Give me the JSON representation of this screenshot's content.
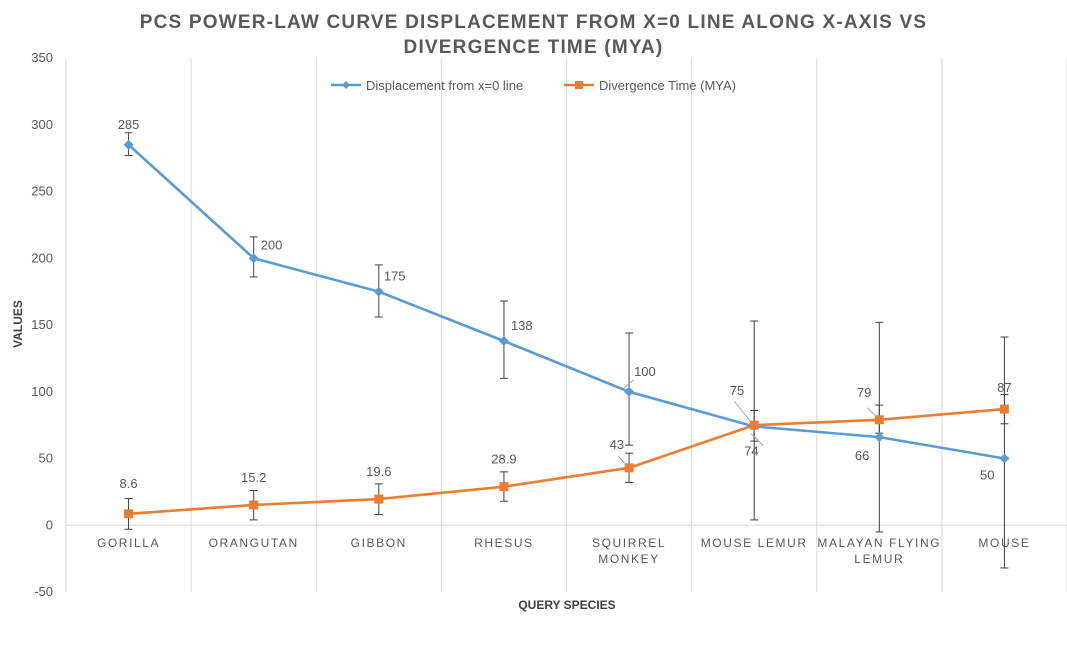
{
  "chart_data": {
    "type": "line",
    "title_line1": "PCS POWER-LAW CURVE DISPLACEMENT FROM X=0 LINE ALONG X-AXIS VS",
    "title_line2": "DIVERGENCE TIME (MYA)",
    "xlabel": "QUERY SPECIES",
    "ylabel": "VALUES",
    "ylim": [
      -50,
      350
    ],
    "yticks": [
      -50,
      0,
      50,
      100,
      150,
      200,
      250,
      300,
      350
    ],
    "grid": "vertical",
    "legend_position": "top",
    "categories": [
      [
        "GORILLA"
      ],
      [
        "ORANGUTAN"
      ],
      [
        "GIBBON"
      ],
      [
        "RHESUS"
      ],
      [
        "SQUIRREL",
        "MONKEY"
      ],
      [
        "MOUSE LEMUR"
      ],
      [
        "MALAYAN FLYING",
        "LEMUR"
      ],
      [
        "MOUSE"
      ]
    ],
    "series": [
      {
        "name": "Displacement from x=0 line",
        "color": "#5B9BD5",
        "marker": "diamond",
        "values": [
          285,
          200,
          175,
          138,
          100,
          74,
          66,
          50
        ],
        "labels": [
          "285",
          "200",
          "175",
          "138",
          "100",
          "74",
          "66",
          "50"
        ],
        "error_low": [
          277,
          186,
          156,
          110,
          60,
          63,
          -5,
          -32
        ],
        "error_high": [
          294,
          216,
          195,
          168,
          144,
          86,
          152,
          141
        ]
      },
      {
        "name": "Divergence Time (MYA)",
        "color": "#ED7D31",
        "marker": "square",
        "values": [
          8.6,
          15.2,
          19.6,
          28.9,
          43,
          75,
          79,
          87
        ],
        "labels": [
          "8.6",
          "15.2",
          "19.6",
          "28.9",
          "43",
          "75",
          "79",
          "87"
        ],
        "error_low": [
          -3,
          4,
          8,
          18,
          32,
          4,
          69,
          76
        ],
        "error_high": [
          20,
          26,
          31,
          40,
          54,
          153,
          90,
          98
        ]
      }
    ]
  }
}
